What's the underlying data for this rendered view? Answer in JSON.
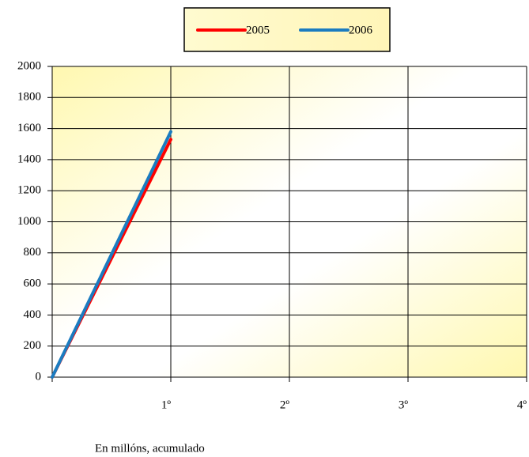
{
  "chart_data": {
    "type": "line",
    "categories": [
      null,
      "1º",
      "2º",
      "3º",
      "4º"
    ],
    "series": [
      {
        "name": "2005",
        "color": "#ff0000",
        "values": [
          0,
          1530,
          null,
          null,
          null
        ]
      },
      {
        "name": "2006",
        "color": "#1b7cc0",
        "values": [
          0,
          1580,
          null,
          null,
          null
        ]
      }
    ],
    "ylim": [
      0,
      2000
    ],
    "yticks": [
      0,
      200,
      400,
      600,
      800,
      1000,
      1200,
      1400,
      1600,
      1800,
      2000
    ],
    "grid": true,
    "legend": "top",
    "x_label": "En millóns, acumulado"
  }
}
